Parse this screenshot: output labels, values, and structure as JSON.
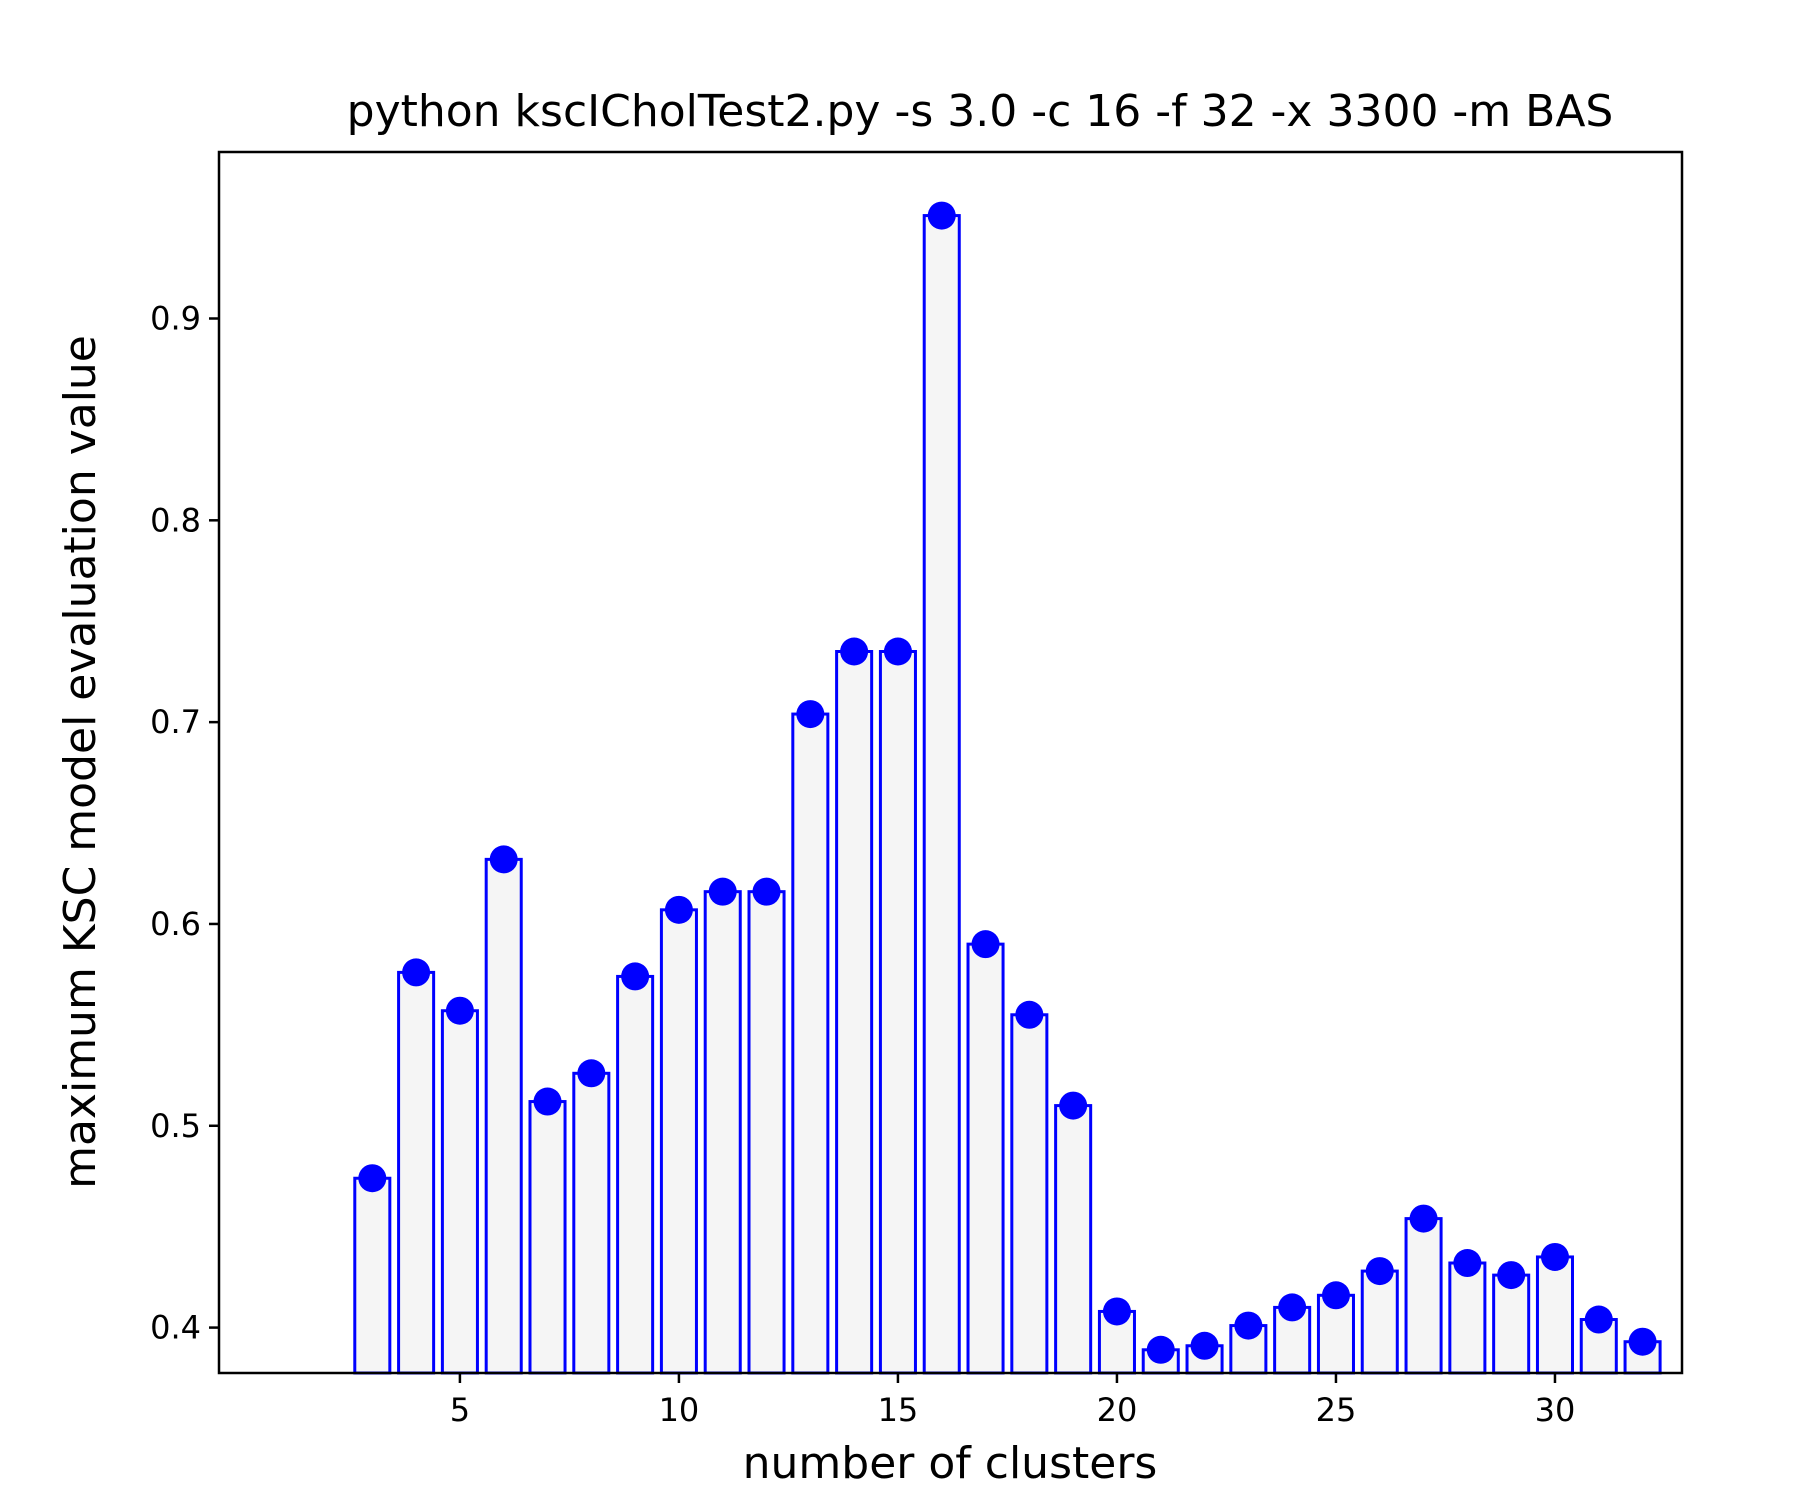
{
  "chart_data": {
    "type": "bar",
    "title": "python kscICholTest2.py -s 3.0 -c 16 -f 32 -x 3300 -m BAS",
    "xlabel": "number of clusters",
    "ylabel": "maximum KSC model evaluation value",
    "x": [
      3,
      4,
      5,
      6,
      7,
      8,
      9,
      10,
      11,
      12,
      13,
      14,
      15,
      16,
      17,
      18,
      19,
      20,
      21,
      22,
      23,
      24,
      25,
      26,
      27,
      28,
      29,
      30,
      31,
      32
    ],
    "values": [
      0.474,
      0.576,
      0.557,
      0.632,
      0.512,
      0.526,
      0.574,
      0.607,
      0.616,
      0.616,
      0.704,
      0.735,
      0.735,
      0.951,
      0.59,
      0.555,
      0.51,
      0.408,
      0.389,
      0.391,
      0.401,
      0.41,
      0.416,
      0.428,
      0.454,
      0.432,
      0.426,
      0.435,
      0.404,
      0.393
    ],
    "xlim": [
      -0.5,
      32.9
    ],
    "ylim": [
      0.3775,
      0.9825
    ],
    "xticks": [
      5,
      10,
      15,
      20,
      25,
      30
    ],
    "xtick_labels": [
      "5",
      "10",
      "15",
      "20",
      "25",
      "30"
    ],
    "yticks": [
      0.4,
      0.5,
      0.6,
      0.7,
      0.8,
      0.9
    ],
    "ytick_labels": [
      "0.4",
      "0.5",
      "0.6",
      "0.7",
      "0.8",
      "0.9"
    ],
    "grid": false,
    "colors": {
      "bar_fill": "#f5f5f5",
      "bar_edge": "#0000ff",
      "marker": "#0000ff"
    }
  }
}
